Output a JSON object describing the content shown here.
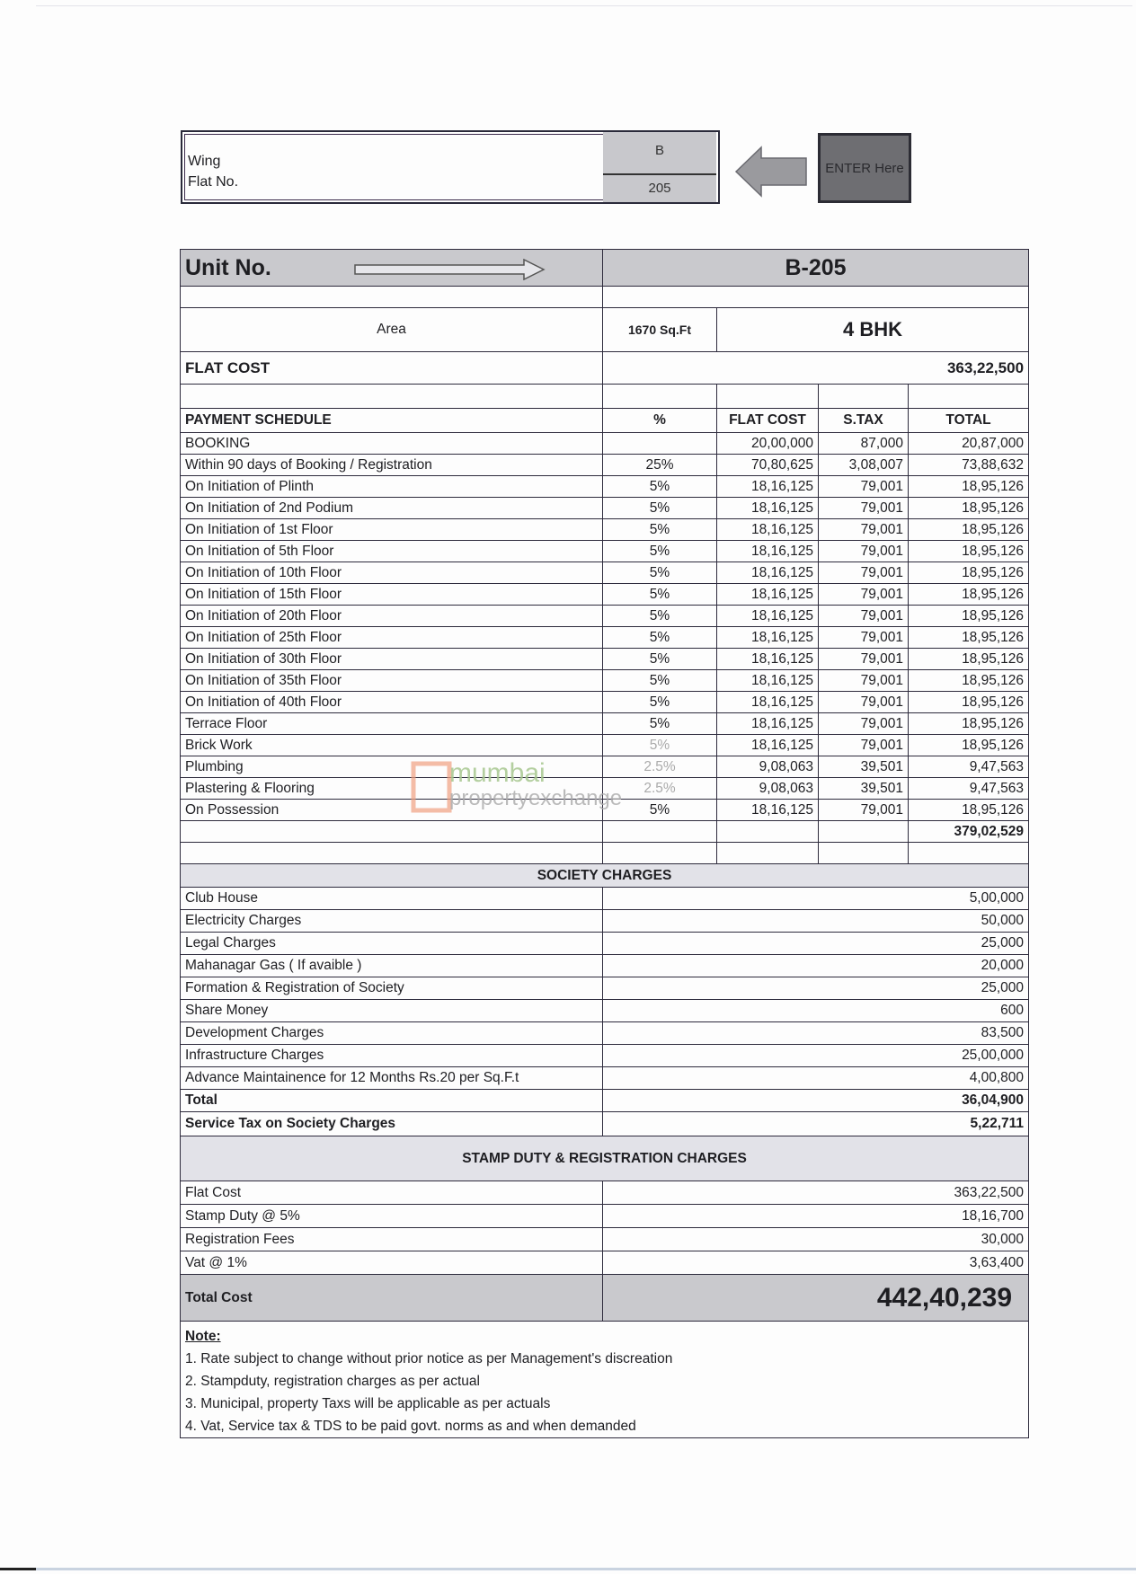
{
  "selector": {
    "wing_label": "Wing",
    "flat_label": "Flat No.",
    "wing_value": "B",
    "flat_value": "205",
    "enter_label": "ENTER Here"
  },
  "unit": {
    "label": "Unit No.",
    "value": "B-205"
  },
  "area": {
    "label": "Area",
    "value": "1670  Sq.Ft",
    "type": "4 BHK"
  },
  "flat_cost": {
    "label": "FLAT COST",
    "value": "363,22,500"
  },
  "schedule": {
    "headers": [
      "PAYMENT SCHEDULE",
      "%",
      "FLAT COST",
      "S.TAX",
      "TOTAL"
    ],
    "rows": [
      [
        "BOOKING",
        "",
        "20,00,000",
        "87,000",
        "20,87,000"
      ],
      [
        "Within 90 days of Booking / Registration",
        "25%",
        "70,80,625",
        "3,08,007",
        "73,88,632"
      ],
      [
        "On Initiation of Plinth",
        "5%",
        "18,16,125",
        "79,001",
        "18,95,126"
      ],
      [
        "On Initiation of 2nd Podium",
        "5%",
        "18,16,125",
        "79,001",
        "18,95,126"
      ],
      [
        "On Initiation of 1st Floor",
        "5%",
        "18,16,125",
        "79,001",
        "18,95,126"
      ],
      [
        "On Initiation of 5th Floor",
        "5%",
        "18,16,125",
        "79,001",
        "18,95,126"
      ],
      [
        "On Initiation of 10th Floor",
        "5%",
        "18,16,125",
        "79,001",
        "18,95,126"
      ],
      [
        "On Initiation of 15th Floor",
        "5%",
        "18,16,125",
        "79,001",
        "18,95,126"
      ],
      [
        "On Initiation of 20th Floor",
        "5%",
        "18,16,125",
        "79,001",
        "18,95,126"
      ],
      [
        "On Initiation of 25th Floor",
        "5%",
        "18,16,125",
        "79,001",
        "18,95,126"
      ],
      [
        "On Initiation of 30th Floor",
        "5%",
        "18,16,125",
        "79,001",
        "18,95,126"
      ],
      [
        "On Initiation of 35th Floor",
        "5%",
        "18,16,125",
        "79,001",
        "18,95,126"
      ],
      [
        "On Initiation of 40th Floor",
        "5%",
        "18,16,125",
        "79,001",
        "18,95,126"
      ],
      [
        "Terrace Floor",
        "5%",
        "18,16,125",
        "79,001",
        "18,95,126"
      ],
      [
        "Brick Work",
        "5%",
        "18,16,125",
        "79,001",
        "18,95,126"
      ],
      [
        "Plumbing",
        "2.5%",
        "9,08,063",
        "39,501",
        "9,47,563"
      ],
      [
        "Plastering & Flooring",
        "2.5%",
        "9,08,063",
        "39,501",
        "9,47,563"
      ],
      [
        "On Possession",
        "5%",
        "18,16,125",
        "79,001",
        "18,95,126"
      ]
    ],
    "total": "379,02,529"
  },
  "society": {
    "title": "SOCIETY CHARGES",
    "rows": [
      [
        "Club House",
        "5,00,000"
      ],
      [
        "Electricity  Charges",
        "50,000"
      ],
      [
        "Legal Charges",
        "25,000"
      ],
      [
        "Mahanagar Gas ( If avaible )",
        "20,000"
      ],
      [
        "Formation & Registration of Society",
        "25,000"
      ],
      [
        "Share Money",
        "600"
      ],
      [
        "Development Charges",
        "83,500"
      ],
      [
        "Infrastructure Charges",
        "25,00,000"
      ],
      [
        "Advance Maintainence for 12 Months Rs.20 per Sq.F.t",
        "4,00,800"
      ]
    ],
    "total_label": "Total",
    "total": "36,04,900",
    "stax_label": "Service Tax on Society Charges",
    "stax": "5,22,711"
  },
  "stamp": {
    "title": "STAMP DUTY & REGISTRATION CHARGES",
    "rows": [
      [
        "Flat Cost",
        "363,22,500"
      ],
      [
        "Stamp Duty @ 5%",
        "18,16,700"
      ],
      [
        "Registration Fees",
        "30,000"
      ],
      [
        "Vat @ 1%",
        "3,63,400"
      ]
    ]
  },
  "total_cost": {
    "label": "Total Cost",
    "value": "442,40,239"
  },
  "notes": {
    "title": "Note:",
    "items": [
      "1. Rate subject to change without prior notice as per Management's discreation",
      "2. Stampduty, registration charges as per actual",
      "3. Municipal, property Taxs will be applicable as per actuals",
      "4. Vat, Service tax & TDS  to be paid govt. norms  as and when demanded"
    ]
  },
  "watermark": {
    "line1": "mumbai",
    "line2": "propertyexchange.com"
  },
  "colors": {
    "header_grey": "#c9c9cd",
    "section_grey": "#e2e2e8",
    "watermark_orange": "#f0a080",
    "watermark_green": "#a8c890"
  }
}
